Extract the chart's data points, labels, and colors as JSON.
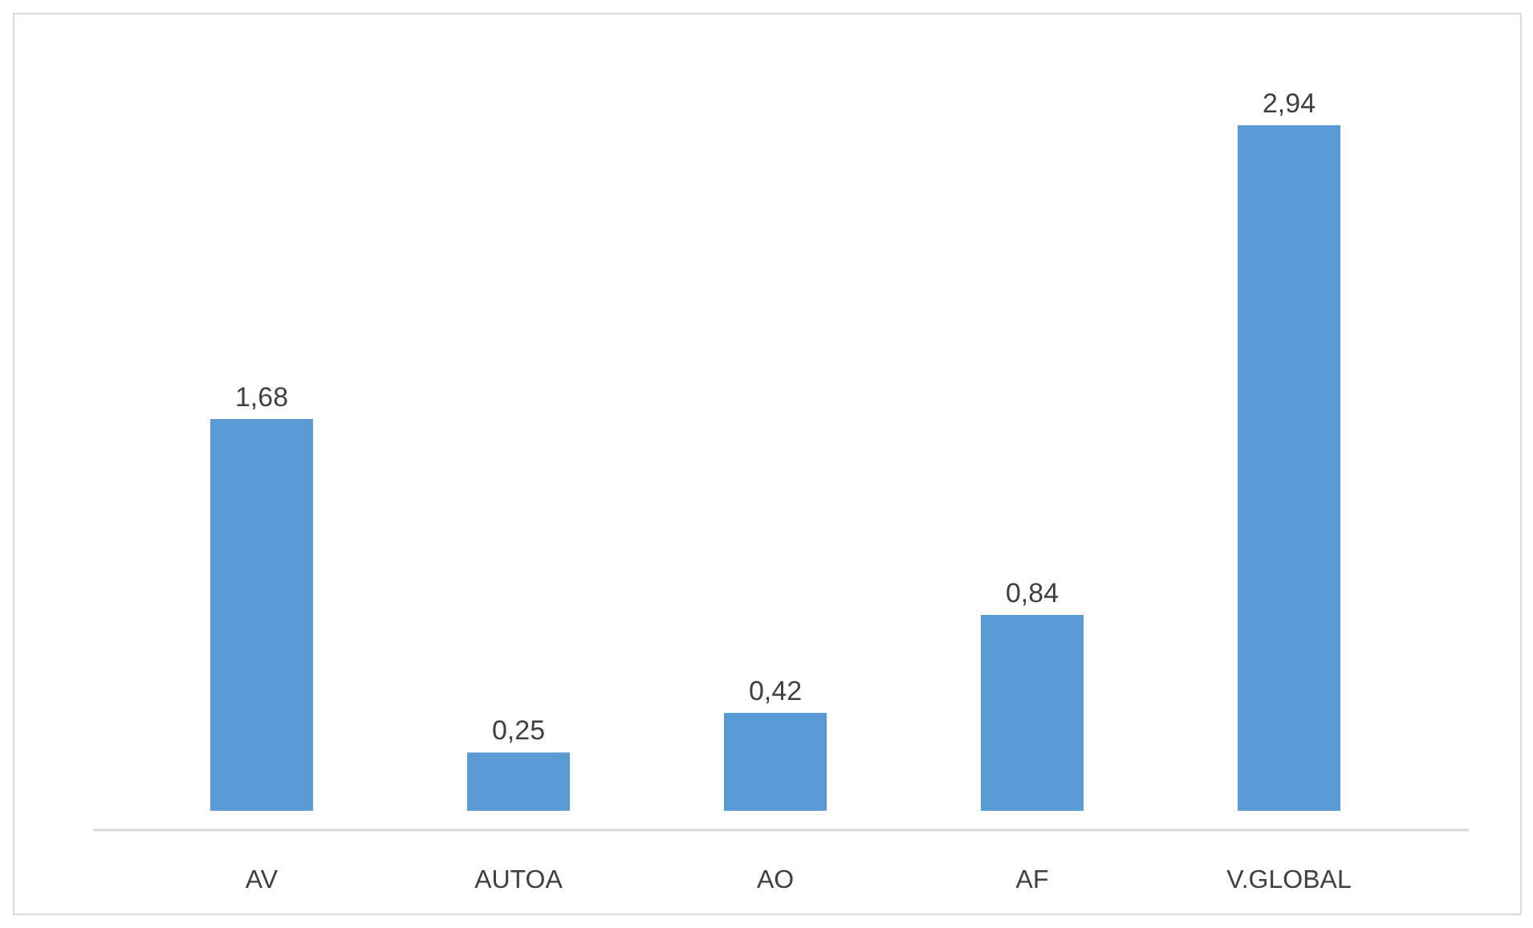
{
  "chart_data": {
    "type": "bar",
    "categories": [
      "AV",
      "AUTOA",
      "AO",
      "AF",
      "V.GLOBAL"
    ],
    "values": [
      1.68,
      0.25,
      0.42,
      0.84,
      2.94
    ],
    "value_labels": [
      "1,68",
      "0,25",
      "0,42",
      "0,84",
      "2,94"
    ],
    "color": "#5b9bd5"
  }
}
